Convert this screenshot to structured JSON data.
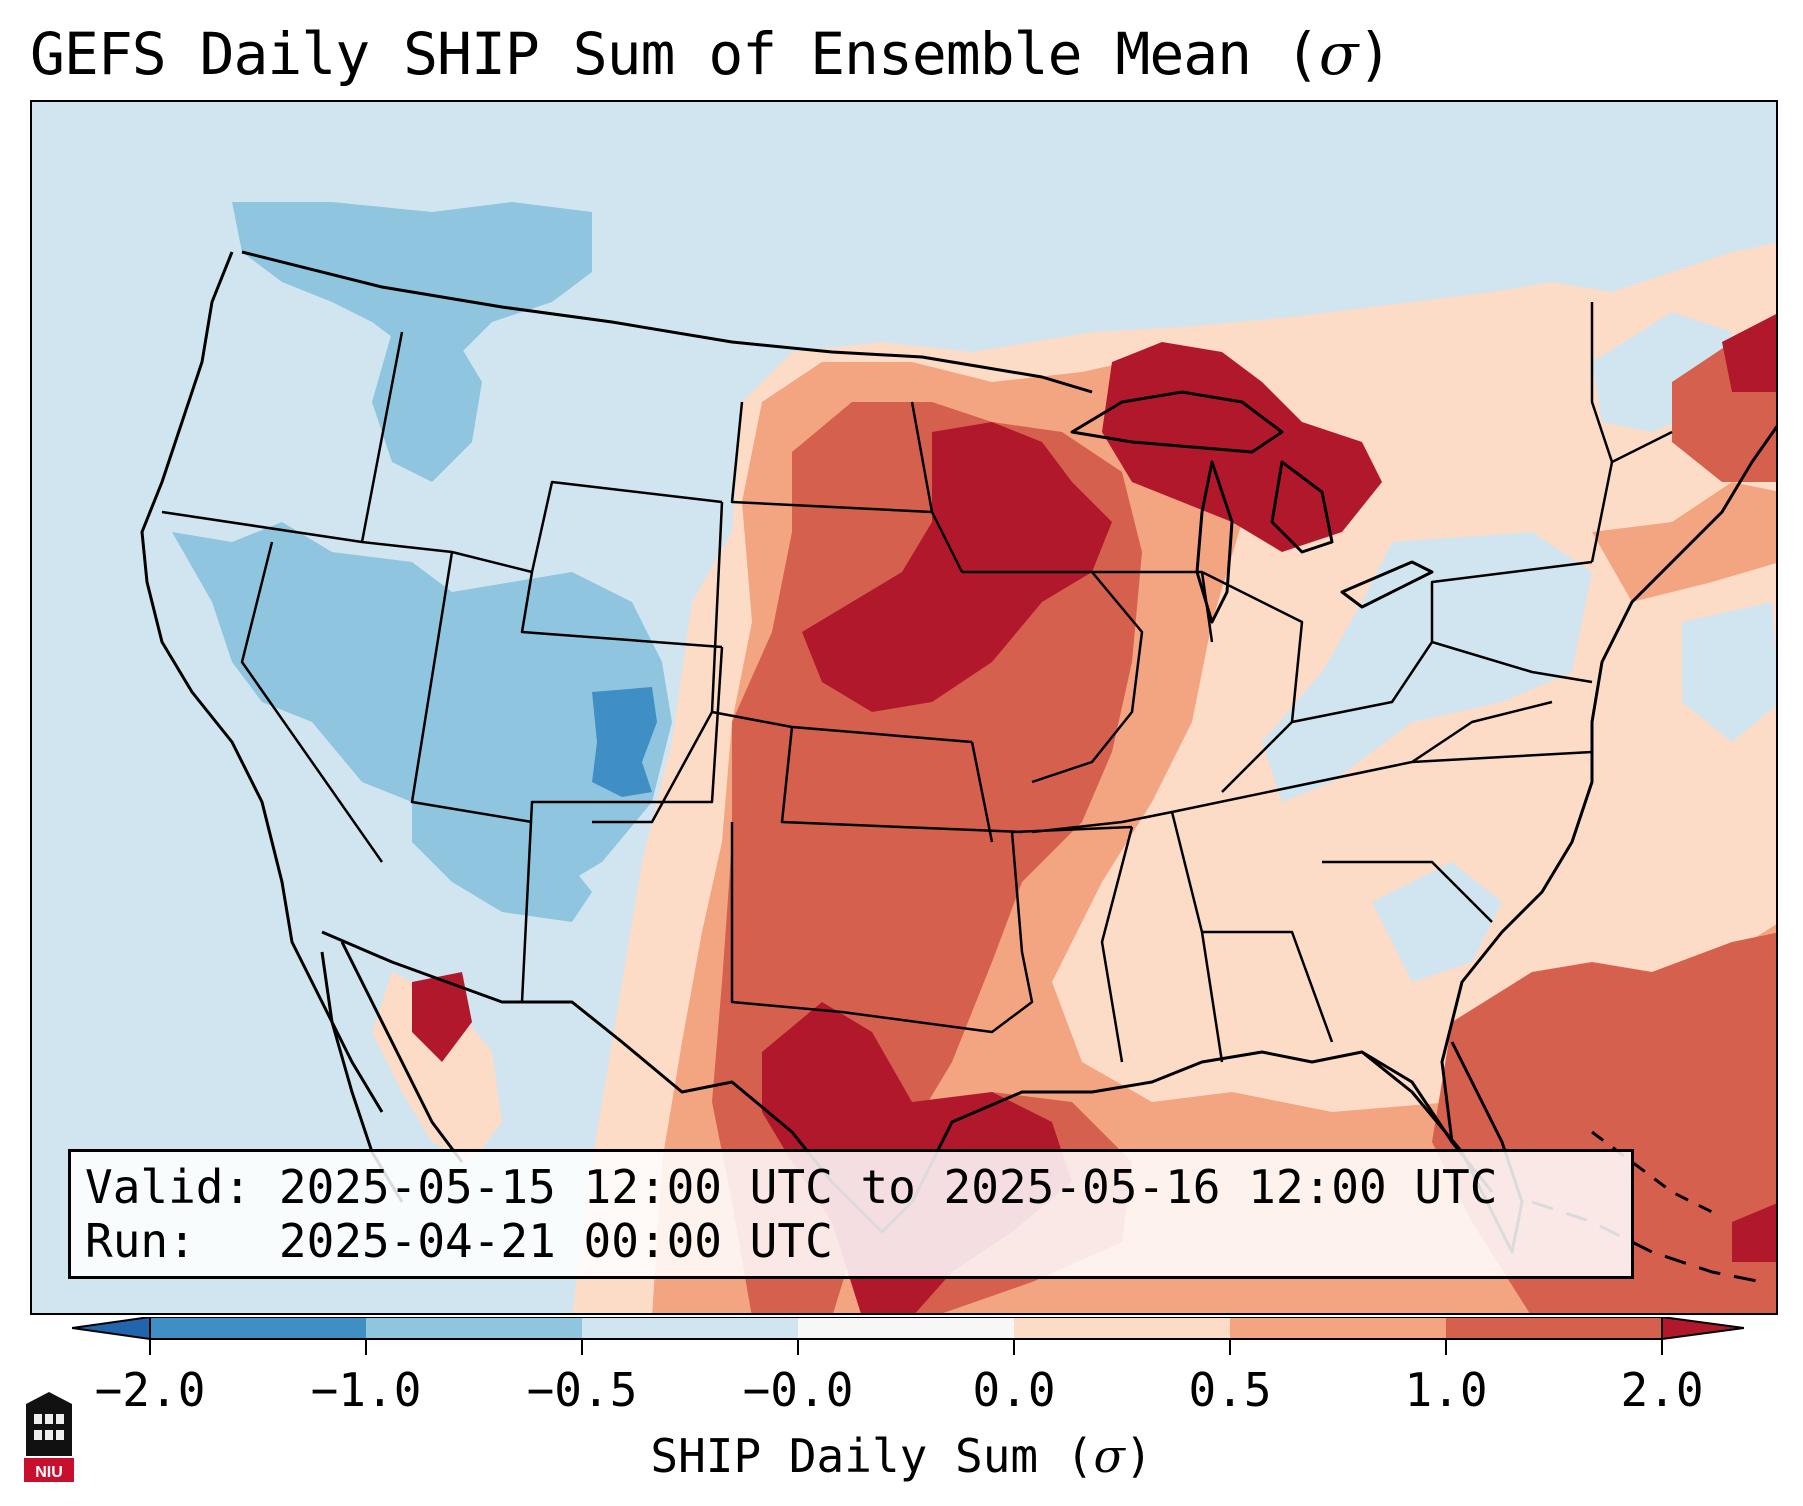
{
  "title": {
    "text": "GEFS Daily SHIP Sum of Ensemble Mean (",
    "sigma": "σ",
    "close": ")"
  },
  "info": {
    "valid_label": "Valid:",
    "valid_value": "2025-05-15 12:00 UTC to 2025-05-16 12:00 UTC",
    "run_label": "Run:",
    "run_value": "2025-04-21 00:00 UTC"
  },
  "colorbar": {
    "title_text": "SHIP Daily Sum (",
    "sigma": "σ",
    "title_close": ")",
    "ticks": [
      "−2.0",
      "−1.0",
      "−0.5",
      "−0.0",
      "0.0",
      "0.5",
      "1.0",
      "2.0"
    ],
    "extend": "both",
    "colors": [
      "#3f8fc5",
      "#90c5e0",
      "#d1e5f0",
      "#f7f7f7",
      "#fcdbc7",
      "#f3a481",
      "#d5604d",
      "#b2182b"
    ]
  },
  "map": {
    "ocean_color": "#d1e5f0",
    "region": "CONUS"
  },
  "logo": {
    "text": "NIU",
    "color": "#c8102e"
  }
}
